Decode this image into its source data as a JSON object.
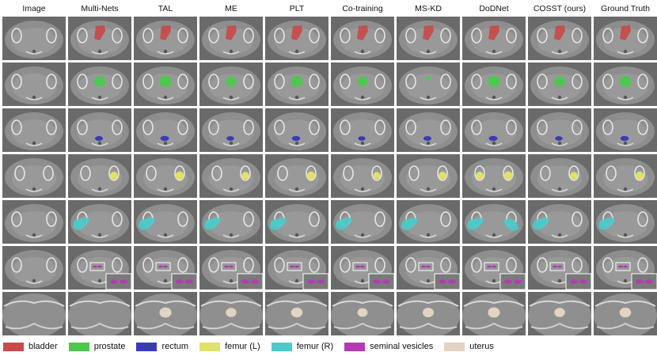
{
  "columns": [
    "Image",
    "Multi-Nets",
    "TAL",
    "ME",
    "PLT",
    "Co-training",
    "MS-KD",
    "DoDNet",
    "COSST (ours)",
    "Ground Truth"
  ],
  "legend": [
    {
      "label": "bladder",
      "color": "#c94a4a"
    },
    {
      "label": "prostate",
      "color": "#4cc84c"
    },
    {
      "label": "rectum",
      "color": "#3a3ab8"
    },
    {
      "label": "femur (L)",
      "color": "#e0e06a"
    },
    {
      "label": "femur (R)",
      "color": "#4cc9c9"
    },
    {
      "label": "seminal vesicles",
      "color": "#b43ab4"
    },
    {
      "label": "uterus",
      "color": "#e2d4c2"
    }
  ],
  "rows": [
    {
      "structure": "bladder"
    },
    {
      "structure": "prostate"
    },
    {
      "structure": "rectum"
    },
    {
      "structure": "femur (L)"
    },
    {
      "structure": "femur (R)"
    },
    {
      "structure": "seminal vesicles"
    },
    {
      "structure": "uterus"
    }
  ]
}
